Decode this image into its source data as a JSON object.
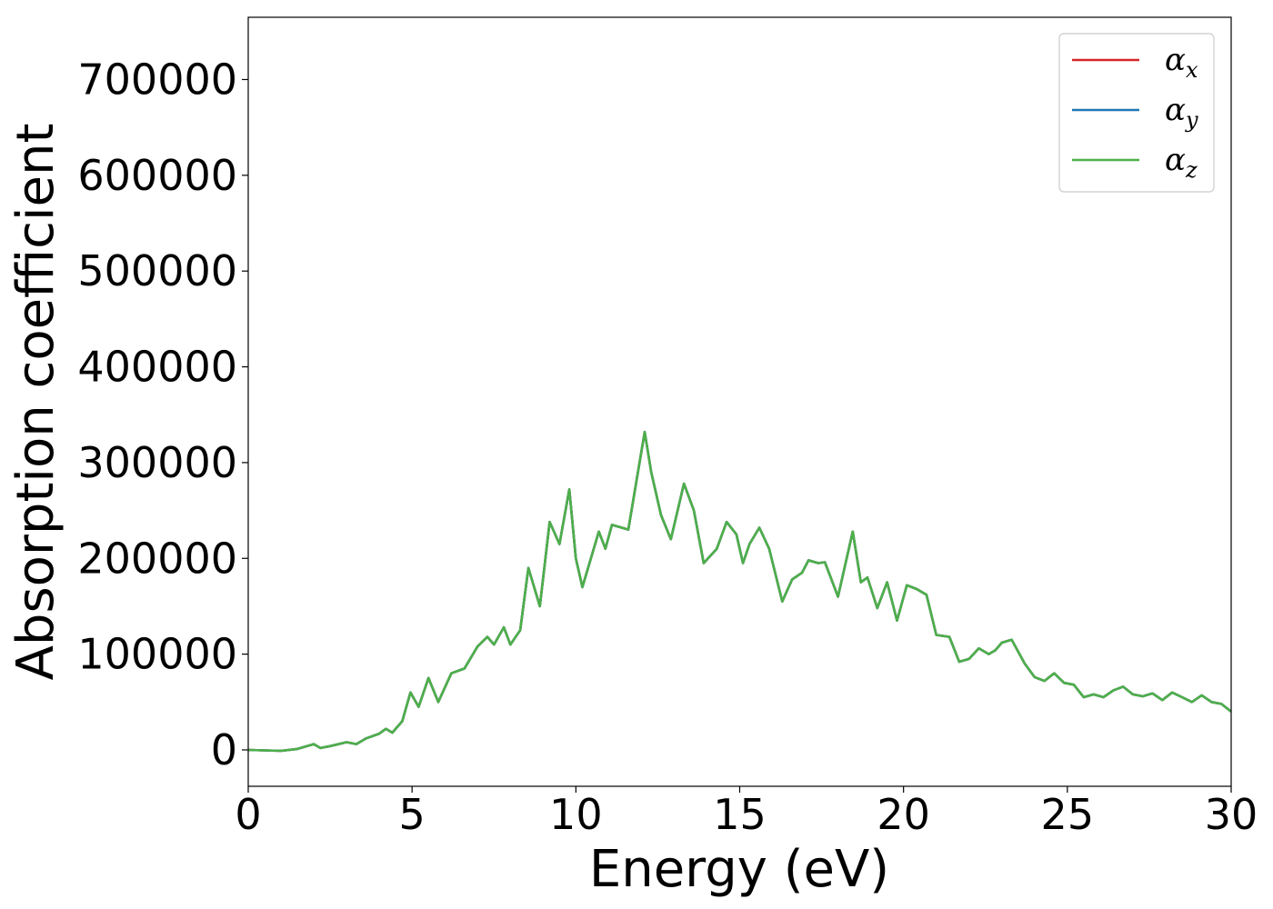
{
  "chart_data": {
    "type": "line",
    "title": "",
    "xlabel": "Energy (eV)",
    "ylabel": "Absorption coefficient",
    "xlim": [
      0,
      30
    ],
    "ylim": [
      -38000,
      765000
    ],
    "xticks": [
      0,
      5,
      10,
      15,
      20,
      25,
      30
    ],
    "xtick_labels": [
      "0",
      "5",
      "10",
      "15",
      "20",
      "25",
      "30"
    ],
    "yticks": [
      0,
      100000,
      200000,
      300000,
      400000,
      500000,
      600000,
      700000
    ],
    "ytick_labels": [
      "0",
      "100000",
      "200000",
      "300000",
      "400000",
      "500000",
      "600000",
      "700000"
    ],
    "grid": false,
    "legend": {
      "placement": "top-right"
    },
    "x": [
      0,
      0.5,
      1,
      1.5,
      2,
      2.2,
      2.5,
      3,
      3.3,
      3.6,
      4,
      4.2,
      4.4,
      4.7,
      4.95,
      5.2,
      5.5,
      5.8,
      6.2,
      6.6,
      7,
      7.3,
      7.5,
      7.8,
      8,
      8.3,
      8.55,
      8.9,
      9.2,
      9.5,
      9.8,
      10.0,
      10.2,
      10.7,
      10.9,
      11.1,
      11.4,
      11.6,
      12.1,
      12.3,
      12.6,
      12.9,
      13.3,
      13.6,
      13.9,
      14.3,
      14.6,
      14.9,
      15.1,
      15.3,
      15.6,
      15.9,
      16.3,
      16.6,
      16.9,
      17.1,
      17.4,
      17.6,
      18.0,
      18.45,
      18.7,
      18.9,
      19.2,
      19.5,
      19.8,
      20.1,
      20.4,
      20.7,
      21.0,
      21.4,
      21.7,
      22.0,
      22.3,
      22.6,
      22.8,
      23.0,
      23.3,
      23.7,
      24.0,
      24.3,
      24.6,
      24.9,
      25.2,
      25.5,
      25.8,
      26.1,
      26.4,
      26.7,
      27.0,
      27.3,
      27.6,
      27.9,
      28.2,
      28.5,
      28.8,
      29.1,
      29.4,
      29.7,
      30
    ],
    "series": [
      {
        "name": "α_x",
        "color": "#d62728",
        "values": [
          0,
          -500,
          -1000,
          1000,
          6000,
          2000,
          4000,
          8000,
          6000,
          12000,
          17000,
          22000,
          18000,
          30000,
          60000,
          45000,
          75000,
          50000,
          80000,
          85000,
          108000,
          118000,
          110000,
          128000,
          110000,
          125000,
          190000,
          150000,
          238000,
          215000,
          272000,
          200000,
          170000,
          228000,
          210000,
          235000,
          232000,
          230000,
          332000,
          290000,
          245000,
          220000,
          278000,
          250000,
          195000,
          210000,
          238000,
          225000,
          195000,
          215000,
          232000,
          210000,
          155000,
          178000,
          185000,
          198000,
          195000,
          196000,
          160000,
          228000,
          175000,
          180000,
          148000,
          175000,
          135000,
          172000,
          168000,
          162000,
          120000,
          118000,
          92000,
          95000,
          106000,
          100000,
          104000,
          112000,
          115000,
          90000,
          76000,
          72000,
          80000,
          70000,
          68000,
          55000,
          58000,
          55000,
          62000,
          66000,
          58000,
          56000,
          59000,
          52000,
          60000,
          55000,
          50000,
          57000,
          50000,
          48000,
          40000
        ]
      },
      {
        "name": "α_y",
        "color": "#1f77b4",
        "values": [
          0,
          -500,
          -1000,
          1000,
          6000,
          2000,
          4000,
          8000,
          6000,
          12000,
          17000,
          22000,
          18000,
          30000,
          60000,
          45000,
          75000,
          50000,
          80000,
          85000,
          108000,
          118000,
          110000,
          128000,
          110000,
          125000,
          190000,
          150000,
          238000,
          215000,
          272000,
          200000,
          170000,
          228000,
          210000,
          235000,
          232000,
          230000,
          332000,
          290000,
          245000,
          220000,
          278000,
          250000,
          195000,
          210000,
          238000,
          225000,
          195000,
          215000,
          232000,
          210000,
          155000,
          178000,
          185000,
          198000,
          195000,
          196000,
          160000,
          228000,
          175000,
          180000,
          148000,
          175000,
          135000,
          172000,
          168000,
          162000,
          120000,
          118000,
          92000,
          95000,
          106000,
          100000,
          104000,
          112000,
          115000,
          90000,
          76000,
          72000,
          80000,
          70000,
          68000,
          55000,
          58000,
          55000,
          62000,
          66000,
          58000,
          56000,
          59000,
          52000,
          60000,
          55000,
          50000,
          57000,
          50000,
          48000,
          40000
        ]
      },
      {
        "name": "α_z",
        "color": "#4daf4a",
        "values": [
          0,
          -500,
          -1000,
          1000,
          6000,
          2000,
          4000,
          8000,
          6000,
          12000,
          17000,
          22000,
          18000,
          30000,
          60000,
          45000,
          75000,
          50000,
          80000,
          85000,
          108000,
          118000,
          110000,
          128000,
          110000,
          125000,
          190000,
          150000,
          238000,
          215000,
          272000,
          200000,
          170000,
          228000,
          210000,
          235000,
          232000,
          230000,
          332000,
          290000,
          245000,
          220000,
          278000,
          250000,
          195000,
          210000,
          238000,
          225000,
          195000,
          215000,
          232000,
          210000,
          155000,
          178000,
          185000,
          198000,
          195000,
          196000,
          160000,
          228000,
          175000,
          180000,
          148000,
          175000,
          135000,
          172000,
          168000,
          162000,
          120000,
          118000,
          92000,
          95000,
          106000,
          100000,
          104000,
          112000,
          115000,
          90000,
          76000,
          72000,
          80000,
          70000,
          68000,
          55000,
          58000,
          55000,
          62000,
          66000,
          58000,
          56000,
          59000,
          52000,
          60000,
          55000,
          50000,
          57000,
          50000,
          48000,
          40000
        ]
      }
    ]
  }
}
